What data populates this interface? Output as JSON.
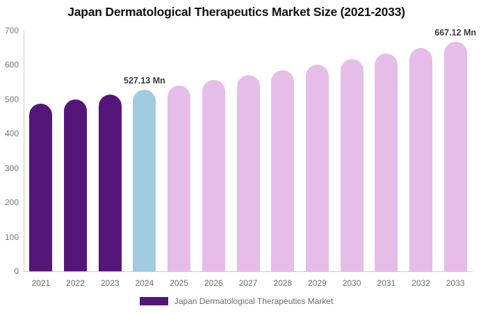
{
  "header": {
    "title": "Japan Dermatological Therapeutics Market Size (2021-2033)"
  },
  "legend": {
    "label": "Japan Dermatological Therapeutics Market"
  },
  "colors": {
    "historical_bar": "#541679",
    "base_year_bar": "#A3CBE0",
    "forecast_bar": "#E6BDE9",
    "axis_line": "#cccccc",
    "y_tick_text": "#757575",
    "x_tick_text": "#6e6e6e",
    "data_label_text": "#3b3b3b",
    "title_text": "#111111",
    "legend_text": "#6b6b72"
  },
  "chart_data": {
    "type": "bar",
    "title": "Japan Dermatological Therapeutics Market Size (2021-2033)",
    "unit": "Mn",
    "categories": [
      "2021",
      "2022",
      "2023",
      "2024",
      "2025",
      "2026",
      "2027",
      "2028",
      "2029",
      "2030",
      "2031",
      "2032",
      "2033"
    ],
    "values": [
      487.5,
      500.4,
      513.6,
      527.13,
      541.1,
      555.4,
      570.1,
      585.2,
      600.7,
      616.6,
      632.9,
      649.7,
      667.12
    ],
    "bar_roles": [
      "historical",
      "historical",
      "historical",
      "base_year",
      "forecast",
      "forecast",
      "forecast",
      "forecast",
      "forecast",
      "forecast",
      "forecast",
      "forecast",
      "forecast"
    ],
    "annotations": [
      {
        "category": "2024",
        "text": "527.13 Mn"
      },
      {
        "category": "2033",
        "text": "667.12 Mn"
      }
    ],
    "xlabel": "",
    "ylabel": "",
    "ylim": [
      0,
      700
    ],
    "yticks": [
      0,
      100,
      200,
      300,
      400,
      500,
      600,
      700
    ],
    "grid": false,
    "legend_position": "bottom"
  }
}
